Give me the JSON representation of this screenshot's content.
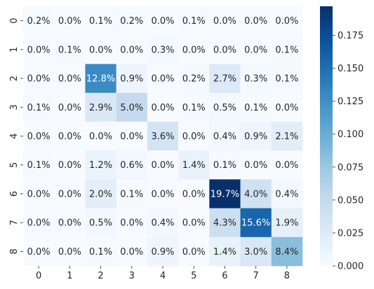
{
  "chart_data": {
    "type": "heatmap",
    "title": "",
    "xlabel": "",
    "ylabel": "",
    "x_categories": [
      "0",
      "1",
      "2",
      "3",
      "4",
      "5",
      "6",
      "7",
      "8"
    ],
    "y_categories": [
      "0",
      "1",
      "2",
      "3",
      "4",
      "5",
      "6",
      "7",
      "8"
    ],
    "values": [
      [
        0.002,
        0.0,
        0.001,
        0.002,
        0.0,
        0.001,
        0.0,
        0.0,
        0.0
      ],
      [
        0.0,
        0.001,
        0.0,
        0.0,
        0.003,
        0.0,
        0.0,
        0.0,
        0.001
      ],
      [
        0.0,
        0.0,
        0.128,
        0.009,
        0.0,
        0.002,
        0.027,
        0.003,
        0.001
      ],
      [
        0.001,
        0.0,
        0.029,
        0.05,
        0.0,
        0.001,
        0.005,
        0.001,
        0.0
      ],
      [
        0.0,
        0.0,
        0.0,
        0.0,
        0.036,
        0.0,
        0.004,
        0.009,
        0.021
      ],
      [
        0.001,
        0.0,
        0.012,
        0.006,
        0.0,
        0.014,
        0.001,
        0.0,
        0.0
      ],
      [
        0.0,
        0.0,
        0.02,
        0.001,
        0.0,
        0.0,
        0.197,
        0.04,
        0.004
      ],
      [
        0.0,
        0.0,
        0.005,
        0.0,
        0.004,
        0.0,
        0.043,
        0.156,
        0.019
      ],
      [
        0.0,
        0.0,
        0.001,
        0.0,
        0.009,
        0.0,
        0.014,
        0.03,
        0.084
      ]
    ],
    "annotations": [
      [
        "0.2%",
        "0.0%",
        "0.1%",
        "0.2%",
        "0.0%",
        "0.1%",
        "0.0%",
        "0.0%",
        "0.0%"
      ],
      [
        "0.0%",
        "0.1%",
        "0.0%",
        "0.0%",
        "0.3%",
        "0.0%",
        "0.0%",
        "0.0%",
        "0.1%"
      ],
      [
        "0.0%",
        "0.0%",
        "12.8%",
        "0.9%",
        "0.0%",
        "0.2%",
        "2.7%",
        "0.3%",
        "0.1%"
      ],
      [
        "0.1%",
        "0.0%",
        "2.9%",
        "5.0%",
        "0.0%",
        "0.1%",
        "0.5%",
        "0.1%",
        "0.0%"
      ],
      [
        "0.0%",
        "0.0%",
        "0.0%",
        "0.0%",
        "3.6%",
        "0.0%",
        "0.4%",
        "0.9%",
        "2.1%"
      ],
      [
        "0.1%",
        "0.0%",
        "1.2%",
        "0.6%",
        "0.0%",
        "1.4%",
        "0.1%",
        "0.0%",
        "0.0%"
      ],
      [
        "0.0%",
        "0.0%",
        "2.0%",
        "0.1%",
        "0.0%",
        "0.0%",
        "19.7%",
        "4.0%",
        "0.4%"
      ],
      [
        "0.0%",
        "0.0%",
        "0.5%",
        "0.0%",
        "0.4%",
        "0.0%",
        "4.3%",
        "15.6%",
        "1.9%"
      ],
      [
        "0.0%",
        "0.0%",
        "0.1%",
        "0.0%",
        "0.9%",
        "0.0%",
        "1.4%",
        "3.0%",
        "8.4%"
      ]
    ],
    "colormap": "Blues",
    "colormap_stops": [
      "#f7fbff",
      "#deebf7",
      "#c6dbef",
      "#9ecae1",
      "#6baed6",
      "#4292c6",
      "#2171b5",
      "#08519c",
      "#08306b"
    ],
    "vmin": 0.0,
    "vmax": 0.197,
    "colorbar_ticks": [
      0.0,
      0.025,
      0.05,
      0.075,
      0.1,
      0.125,
      0.15,
      0.175
    ],
    "colorbar_tick_labels": [
      "0.000",
      "0.025",
      "0.050",
      "0.075",
      "0.100",
      "0.125",
      "0.150",
      "0.175"
    ],
    "grid": false,
    "colorbar": "right"
  }
}
